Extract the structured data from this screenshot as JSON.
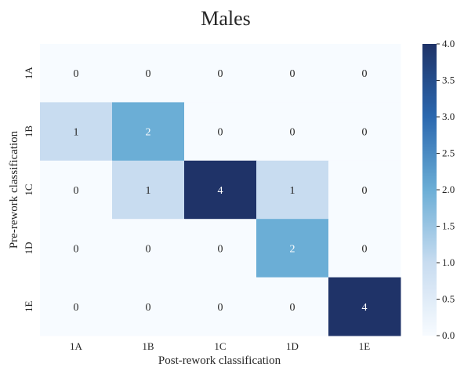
{
  "chart_data": {
    "type": "heatmap",
    "title": "Males",
    "xlabel": "Post-rework classification",
    "ylabel": "Pre-rework classification",
    "x_categories": [
      "1A",
      "1B",
      "1C",
      "1D",
      "1E"
    ],
    "y_categories": [
      "1A",
      "1B",
      "1C",
      "1D",
      "1E"
    ],
    "values": [
      [
        0,
        0,
        0,
        0,
        0
      ],
      [
        1,
        2,
        0,
        0,
        0
      ],
      [
        0,
        1,
        4,
        1,
        0
      ],
      [
        0,
        0,
        0,
        2,
        0
      ],
      [
        0,
        0,
        0,
        0,
        4
      ]
    ],
    "colorbar": {
      "min": 0.0,
      "max": 4.0,
      "ticks": [
        "0.0",
        "0.5",
        "1.0",
        "1.5",
        "2.0",
        "2.5",
        "3.0",
        "3.5",
        "4.0"
      ],
      "colormap": "Blues"
    },
    "colors": {
      "low": "#f7fbff",
      "high": "#1f3368",
      "text_dark": "#262626",
      "text_light": "#ffffff"
    }
  }
}
